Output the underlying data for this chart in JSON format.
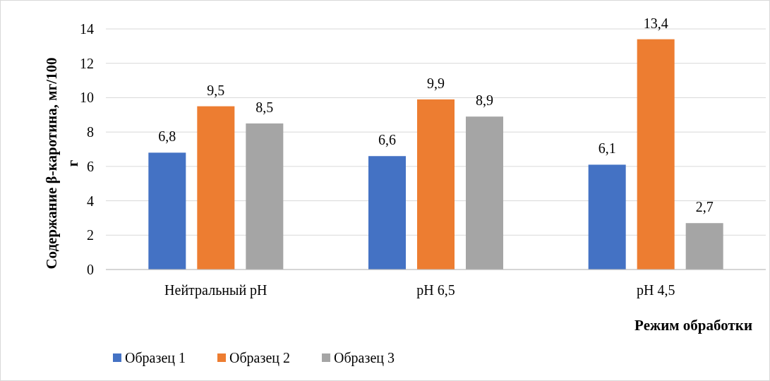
{
  "chart_data": {
    "type": "bar",
    "xlabel": "Режим обработки",
    "ylabel": "Содержание β-каротина, мг/100 г",
    "categories": [
      "Нейтральный pH",
      "pH 6,5",
      "pH 4,5"
    ],
    "series": [
      {
        "name": "Образец 1",
        "color": "#4472c4",
        "values": [
          6.8,
          6.6,
          6.1
        ],
        "value_labels": [
          "6,8",
          "6,6",
          "6,1"
        ]
      },
      {
        "name": "Образец 2",
        "color": "#ed7d31",
        "values": [
          9.5,
          9.9,
          13.4
        ],
        "value_labels": [
          "9,5",
          "9,9",
          "13,4"
        ]
      },
      {
        "name": "Образец 3",
        "color": "#a5a5a5",
        "values": [
          8.5,
          8.9,
          2.7
        ],
        "value_labels": [
          "8,5",
          "8,9",
          "2,7"
        ]
      }
    ],
    "ylim": [
      0,
      14
    ],
    "yticks": [
      0,
      2,
      4,
      6,
      8,
      10,
      12,
      14
    ],
    "grid": "y",
    "legend": "bottom left"
  }
}
